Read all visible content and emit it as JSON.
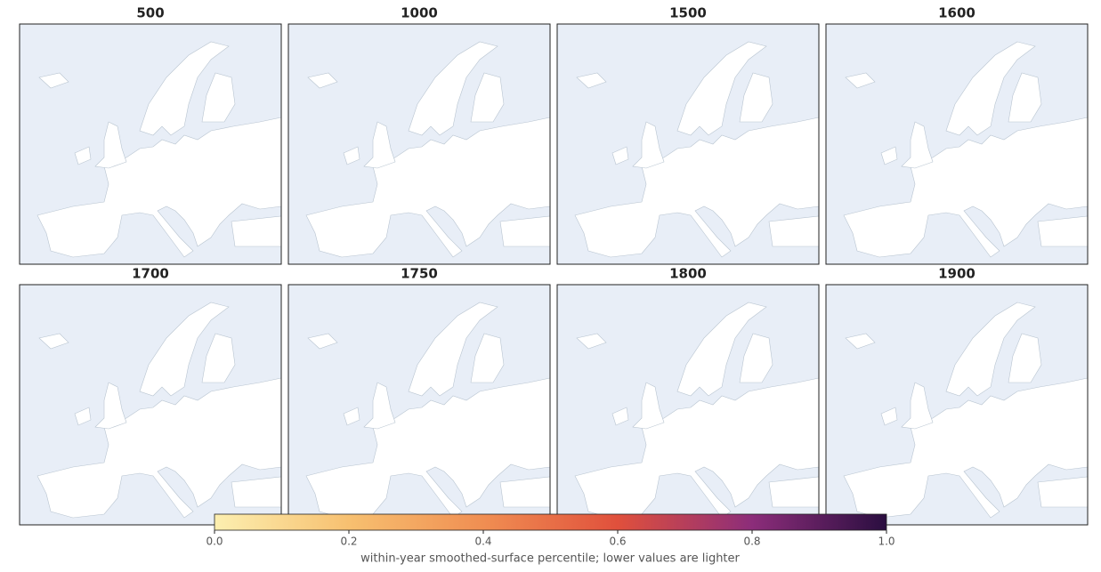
{
  "panels": [
    {
      "title": "500"
    },
    {
      "title": "1000"
    },
    {
      "title": "1500"
    },
    {
      "title": "1600"
    },
    {
      "title": "1700"
    },
    {
      "title": "1750"
    },
    {
      "title": "1800"
    },
    {
      "title": "1900"
    }
  ],
  "colorbar": {
    "lim": [
      0,
      1
    ],
    "ticks": [
      {
        "value": 0,
        "label": "0.0"
      },
      0.2,
      0.4,
      0.6,
      0.8,
      {
        "value": 1,
        "label": "1.0"
      }
    ],
    "colors": [
      "#fcefb0",
      "#f7c070",
      "#f08e52",
      "#e0503c",
      "#8c2d7a",
      "#2a0e40"
    ],
    "label": "within-year smoothed-surface percentile; lower values are lighter"
  }
}
